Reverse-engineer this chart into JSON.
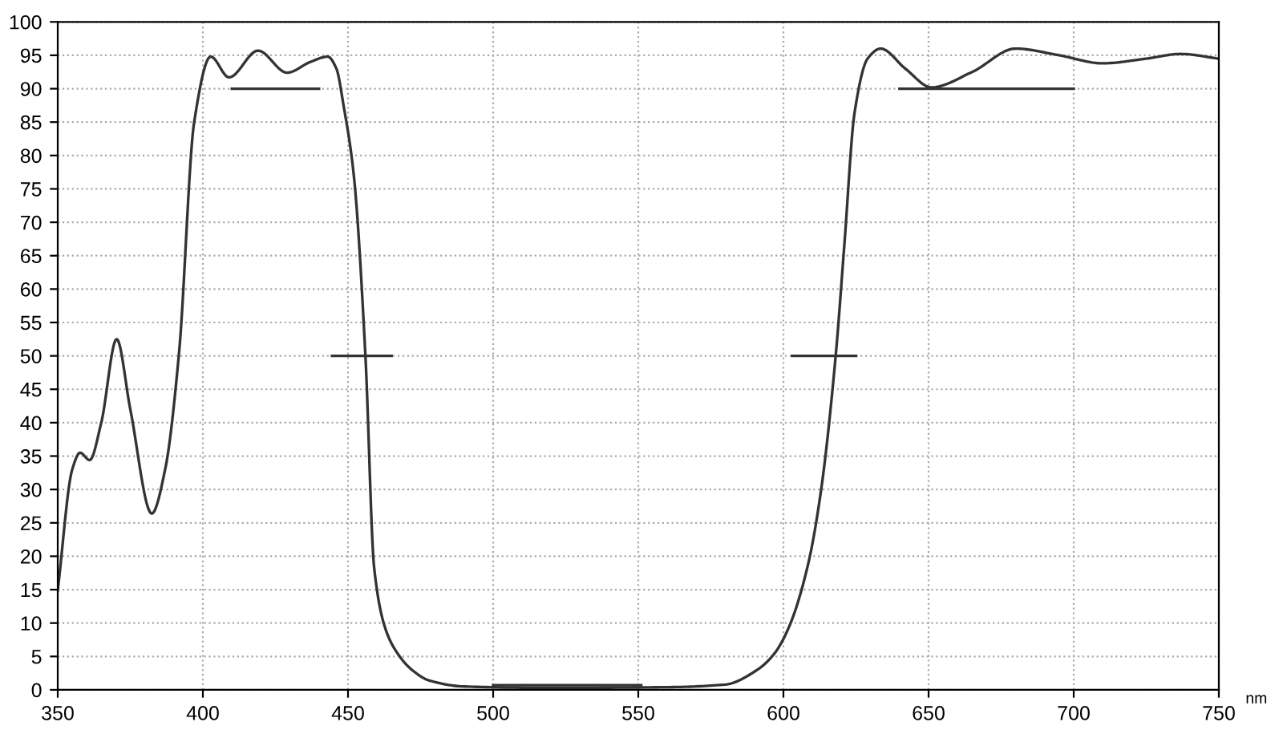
{
  "chart_data": {
    "type": "line",
    "xlabel": "nm",
    "xlim": [
      350,
      750
    ],
    "ylim": [
      0,
      100
    ],
    "xticks": [
      350,
      400,
      450,
      500,
      550,
      600,
      650,
      700,
      750
    ],
    "yticks": [
      0,
      5,
      10,
      15,
      20,
      25,
      30,
      35,
      40,
      45,
      50,
      55,
      60,
      65,
      70,
      75,
      80,
      85,
      90,
      95,
      100
    ],
    "grid": true,
    "legend": false,
    "line_style": "solid",
    "series": [
      {
        "color": "#333333",
        "x": [
          350,
          355,
          357.7,
          361,
          365,
          370.3,
          375,
          382.4,
          387,
          391.8,
          397,
          402.7,
          409,
          419,
          429,
          437,
          443,
          446,
          448.5,
          452,
          456,
          459,
          463,
          467,
          472,
          478,
          490,
          520,
          560,
          580,
          591,
          597,
          602,
          608.6,
          613,
          618,
          621,
          624.5,
          629,
          633.5,
          642,
          651,
          665,
          680,
          695,
          710,
          725,
          736.8,
          750
        ],
        "values": [
          14.9,
          33,
          35.5,
          34.4,
          40,
          52.5,
          42,
          26.4,
          33,
          50.5,
          85,
          94.8,
          91.7,
          95.7,
          92.4,
          94,
          94.8,
          93,
          87.4,
          77,
          50,
          18.3,
          9,
          5.5,
          3,
          1.4,
          0.5,
          0.3,
          0.4,
          0.8,
          3,
          5.5,
          9.5,
          19,
          30,
          50,
          66.7,
          86.4,
          94.5,
          96,
          93,
          90.2,
          92.5,
          96,
          95,
          93.8,
          94.5,
          95.2,
          94.5
        ]
      },
      {
        "color": "#333333",
        "x": [
          410,
          440
        ],
        "values": [
          90,
          90
        ]
      },
      {
        "color": "#333333",
        "x": [
          444.5,
          465
        ],
        "values": [
          50,
          50
        ]
      },
      {
        "color": "#333333",
        "x": [
          500,
          551
        ],
        "values": [
          0.7,
          0.7
        ]
      },
      {
        "color": "#333333",
        "x": [
          603,
          625
        ],
        "values": [
          50,
          50
        ]
      },
      {
        "color": "#333333",
        "x": [
          640,
          700
        ],
        "values": [
          90,
          90
        ]
      }
    ]
  }
}
